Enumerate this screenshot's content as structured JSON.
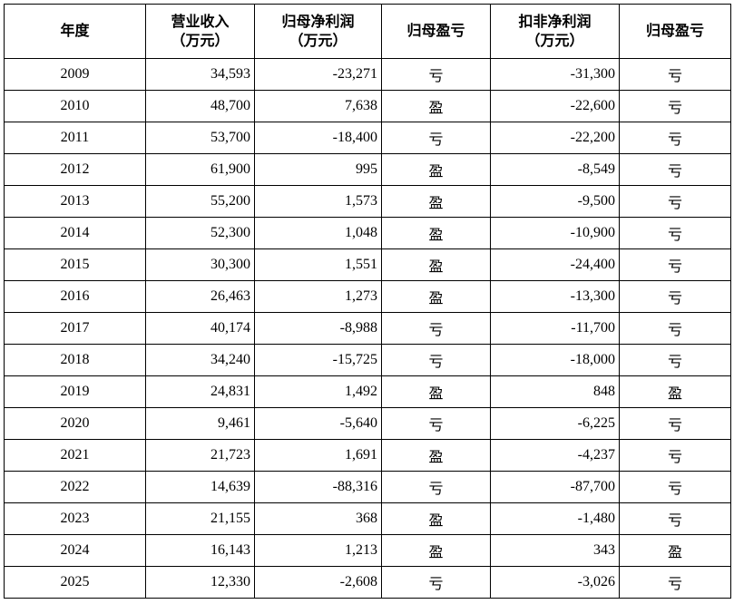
{
  "table": {
    "header": [
      "年度",
      "营业收入\n（万元）",
      "归母净利润\n（万元）",
      "归母盈亏",
      "扣非净利润\n（万元）",
      "归母盈亏"
    ],
    "rows": [
      [
        "2009",
        "34,593",
        "-23,271",
        "亏",
        "-31,300",
        "亏"
      ],
      [
        "2010",
        "48,700",
        "7,638",
        "盈",
        "-22,600",
        "亏"
      ],
      [
        "2011",
        "53,700",
        "-18,400",
        "亏",
        "-22,200",
        "亏"
      ],
      [
        "2012",
        "61,900",
        "995",
        "盈",
        "-8,549",
        "亏"
      ],
      [
        "2013",
        "55,200",
        "1,573",
        "盈",
        "-9,500",
        "亏"
      ],
      [
        "2014",
        "52,300",
        "1,048",
        "盈",
        "-10,900",
        "亏"
      ],
      [
        "2015",
        "30,300",
        "1,551",
        "盈",
        "-24,400",
        "亏"
      ],
      [
        "2016",
        "26,463",
        "1,273",
        "盈",
        "-13,300",
        "亏"
      ],
      [
        "2017",
        "40,174",
        "-8,988",
        "亏",
        "-11,700",
        "亏"
      ],
      [
        "2018",
        "34,240",
        "-15,725",
        "亏",
        "-18,000",
        "亏"
      ],
      [
        "2019",
        "24,831",
        "1,492",
        "盈",
        "848",
        "盈"
      ],
      [
        "2020",
        "9,461",
        "-5,640",
        "亏",
        "-6,225",
        "亏"
      ],
      [
        "2021",
        "21,723",
        "1,691",
        "盈",
        "-4,237",
        "亏"
      ],
      [
        "2022",
        "14,639",
        "-88,316",
        "亏",
        "-87,700",
        "亏"
      ],
      [
        "2023",
        "21,155",
        "368",
        "盈",
        "-1,480",
        "亏"
      ],
      [
        "2024",
        "16,143",
        "1,213",
        "盈",
        "343",
        "盈"
      ],
      [
        "2025",
        "12,330",
        "-2,608",
        "亏",
        "-3,026",
        "亏"
      ]
    ]
  }
}
